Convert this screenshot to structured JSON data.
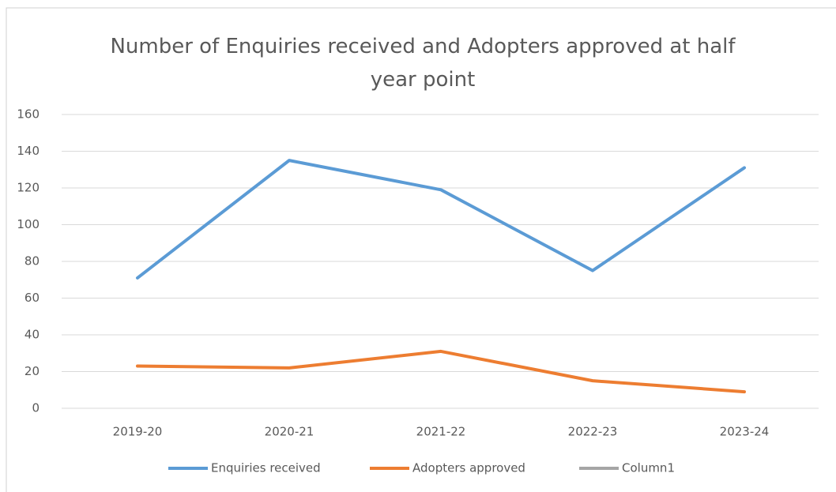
{
  "chart_data": {
    "type": "line",
    "title": "Number of Enquiries received and Adopters approved at half year point",
    "categories": [
      "2019-20",
      "2020-21",
      "2021-22",
      "2022-23",
      "2023-24"
    ],
    "series": [
      {
        "name": "Enquiries received",
        "color": "#5b9bd5",
        "values": [
          71,
          135,
          119,
          75,
          131
        ]
      },
      {
        "name": "Adopters approved",
        "color": "#ed7d31",
        "values": [
          23,
          22,
          31,
          15,
          9
        ]
      },
      {
        "name": "Column1",
        "color": "#a5a5a5",
        "values": [
          null,
          null,
          null,
          null,
          null
        ]
      }
    ],
    "ylim": [
      0,
      160
    ],
    "yticks": [
      0,
      20,
      40,
      60,
      80,
      100,
      120,
      140,
      160
    ],
    "grid": true,
    "legend": "bottom"
  }
}
